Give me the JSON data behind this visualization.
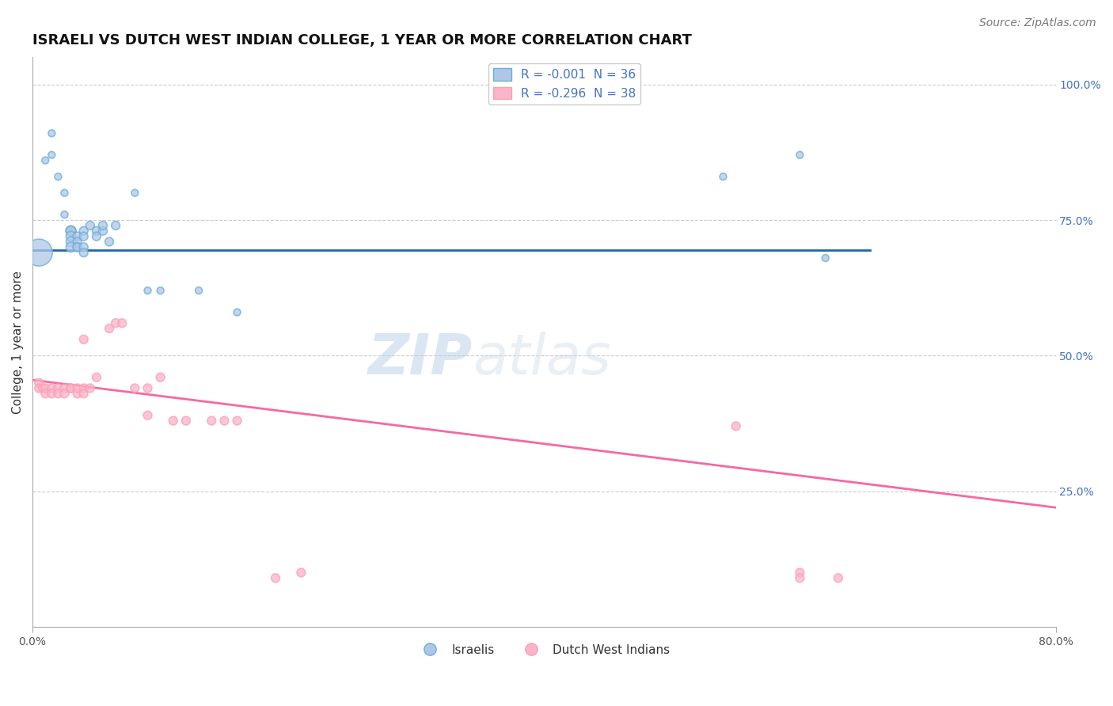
{
  "title": "ISRAELI VS DUTCH WEST INDIAN COLLEGE, 1 YEAR OR MORE CORRELATION CHART",
  "source": "Source: ZipAtlas.com",
  "ylabel": "College, 1 year or more",
  "right_ytick_labels": [
    "100.0%",
    "75.0%",
    "50.0%",
    "25.0%"
  ],
  "right_ytick_values": [
    1.0,
    0.75,
    0.5,
    0.25
  ],
  "xmin": 0.0,
  "xmax": 0.8,
  "ymin": 0.0,
  "ymax": 1.05,
  "legend_label_blue": "R = -0.001  N = 36",
  "legend_label_pink": "R = -0.296  N = 38",
  "legend_label_israelis": "Israelis",
  "legend_label_dutch": "Dutch West Indians",
  "blue_color": "#6baed6",
  "pink_color": "#fa9fb5",
  "blue_line_color": "#2166ac",
  "pink_line_color": "#f768a1",
  "blue_fill": "#aec7e8",
  "pink_fill": "#fbb4c9",
  "background_color": "#ffffff",
  "grid_color": "#cccccc",
  "blue_scatter_x": [
    0.005,
    0.01,
    0.015,
    0.015,
    0.02,
    0.025,
    0.025,
    0.03,
    0.03,
    0.03,
    0.03,
    0.03,
    0.03,
    0.035,
    0.035,
    0.035,
    0.035,
    0.04,
    0.04,
    0.04,
    0.04,
    0.045,
    0.05,
    0.05,
    0.055,
    0.055,
    0.06,
    0.065,
    0.08,
    0.09,
    0.1,
    0.13,
    0.16,
    0.54,
    0.6,
    0.62
  ],
  "blue_scatter_y": [
    0.69,
    0.86,
    0.91,
    0.87,
    0.83,
    0.8,
    0.76,
    0.73,
    0.73,
    0.73,
    0.72,
    0.71,
    0.7,
    0.72,
    0.71,
    0.7,
    0.7,
    0.73,
    0.72,
    0.7,
    0.69,
    0.74,
    0.73,
    0.72,
    0.73,
    0.74,
    0.71,
    0.74,
    0.8,
    0.62,
    0.62,
    0.62,
    0.58,
    0.83,
    0.87,
    0.68
  ],
  "blue_scatter_sizes": [
    600,
    40,
    40,
    40,
    40,
    40,
    40,
    80,
    80,
    80,
    80,
    80,
    80,
    60,
    60,
    60,
    60,
    60,
    60,
    60,
    60,
    60,
    60,
    60,
    60,
    60,
    60,
    60,
    40,
    40,
    40,
    40,
    40,
    40,
    40,
    40
  ],
  "pink_scatter_x": [
    0.005,
    0.005,
    0.008,
    0.01,
    0.01,
    0.015,
    0.015,
    0.02,
    0.02,
    0.025,
    0.025,
    0.03,
    0.03,
    0.035,
    0.035,
    0.04,
    0.04,
    0.04,
    0.045,
    0.05,
    0.06,
    0.065,
    0.07,
    0.08,
    0.09,
    0.09,
    0.1,
    0.11,
    0.12,
    0.14,
    0.15,
    0.16,
    0.19,
    0.21,
    0.55,
    0.6,
    0.6,
    0.63
  ],
  "pink_scatter_y": [
    0.45,
    0.44,
    0.44,
    0.44,
    0.43,
    0.44,
    0.43,
    0.44,
    0.43,
    0.44,
    0.43,
    0.44,
    0.44,
    0.43,
    0.44,
    0.44,
    0.43,
    0.53,
    0.44,
    0.46,
    0.55,
    0.56,
    0.56,
    0.44,
    0.44,
    0.39,
    0.46,
    0.38,
    0.38,
    0.38,
    0.38,
    0.38,
    0.09,
    0.1,
    0.37,
    0.1,
    0.09,
    0.09
  ],
  "pink_scatter_sizes": [
    60,
    60,
    60,
    60,
    60,
    60,
    60,
    60,
    60,
    60,
    60,
    60,
    60,
    60,
    60,
    60,
    60,
    60,
    60,
    60,
    60,
    60,
    60,
    60,
    60,
    60,
    60,
    60,
    60,
    60,
    60,
    60,
    60,
    60,
    60,
    60,
    60,
    60
  ],
  "blue_line_x": [
    0.0,
    0.655
  ],
  "blue_line_y": [
    0.695,
    0.695
  ],
  "pink_line_x": [
    0.0,
    0.8
  ],
  "pink_line_y": [
    0.455,
    0.22
  ],
  "watermark_zip": "ZIP",
  "watermark_atlas": "atlas",
  "title_fontsize": 13,
  "axis_fontsize": 11,
  "tick_fontsize": 10,
  "source_fontsize": 10
}
